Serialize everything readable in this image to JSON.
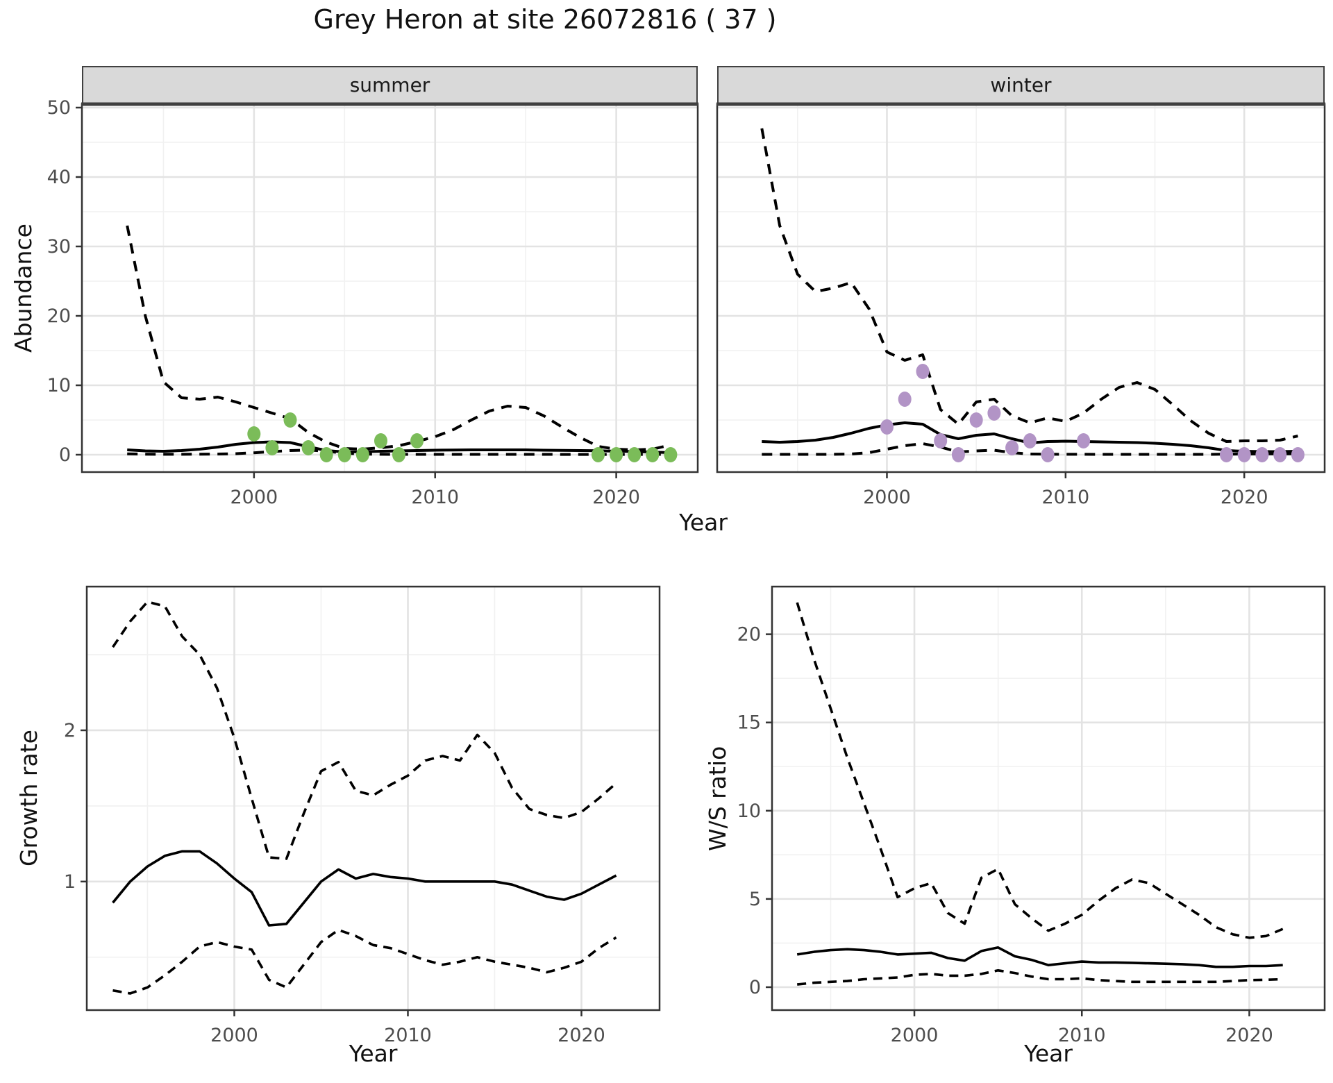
{
  "title": "Grey Heron at site 26072816 ( 37 )",
  "facets": {
    "summer": "summer",
    "winter": "winter"
  },
  "axis_titles": {
    "abundance": "Abundance",
    "year_top": "Year",
    "growth": "Growth rate",
    "ws": "W/S ratio",
    "year_growth": "Year",
    "year_ws": "Year"
  },
  "colors": {
    "summer_points": "#7BBC59",
    "winter_points": "#B294C6",
    "line": "#000000",
    "grid_major": "#E3E3E3",
    "grid_minor": "#F1F1F1",
    "strip_background": "#D9D9D9",
    "panel_border": "#333333",
    "tick_text": "#4D4D4D"
  },
  "chart_data": [
    {
      "id": "abundance-summer",
      "type": "line",
      "facet_label": "summer",
      "x_label": "Year",
      "y_label": "Abundance",
      "xlim": [
        1990.5,
        2024.5
      ],
      "ylim": [
        -2.5,
        50.5
      ],
      "x_ticks": [
        2000,
        2010,
        2020
      ],
      "x_minor_ticks": [
        1995,
        2005,
        2015
      ],
      "y_ticks": [
        0,
        10,
        20,
        30,
        40,
        50
      ],
      "y_minor_ticks": [
        5,
        15,
        25,
        35,
        45
      ],
      "line_years": [
        1993,
        1994,
        1995,
        1996,
        1997,
        1998,
        1999,
        2000,
        2001,
        2002,
        2003,
        2004,
        2005,
        2006,
        2007,
        2008,
        2009,
        2010,
        2011,
        2012,
        2013,
        2014,
        2015,
        2016,
        2017,
        2018,
        2019,
        2020,
        2021,
        2022,
        2023
      ],
      "series": [
        {
          "name": "upper-ci",
          "style": "dashed",
          "values": [
            33,
            20,
            10.5,
            8.2,
            8.0,
            8.3,
            7.6,
            6.8,
            6.0,
            5.2,
            3.2,
            1.8,
            0.9,
            0.8,
            1.0,
            1.3,
            1.9,
            2.6,
            3.6,
            5.0,
            6.3,
            7.0,
            6.8,
            5.6,
            4.0,
            2.5,
            1.2,
            0.8,
            0.7,
            0.8,
            1.4
          ]
        },
        {
          "name": "fitted",
          "style": "solid",
          "values": [
            0.7,
            0.55,
            0.5,
            0.6,
            0.8,
            1.1,
            1.5,
            1.75,
            1.85,
            1.75,
            1.15,
            0.6,
            0.4,
            0.42,
            0.5,
            0.55,
            0.6,
            0.65,
            0.68,
            0.7,
            0.7,
            0.7,
            0.7,
            0.65,
            0.62,
            0.6,
            0.58,
            0.5,
            0.45,
            0.38,
            0.3
          ]
        },
        {
          "name": "lower-ci",
          "style": "dashed",
          "values": [
            0.12,
            0.08,
            0.06,
            0.06,
            0.08,
            0.1,
            0.15,
            0.28,
            0.45,
            0.6,
            0.68,
            0.5,
            0.22,
            0.1,
            0.06,
            0.05,
            0.05,
            0.05,
            0.05,
            0.05,
            0.05,
            0.05,
            0.05,
            0.05,
            0.04,
            0.04,
            0.04,
            0.04,
            0.04,
            0.04,
            0.05
          ]
        }
      ],
      "observations": {
        "color": "summer_points",
        "years": [
          2000,
          2001,
          2002,
          2003,
          2004,
          2005,
          2006,
          2007,
          2008,
          2009,
          2019,
          2020,
          2021,
          2022,
          2023
        ],
        "values": [
          3,
          1,
          5,
          1,
          0,
          0,
          0,
          2,
          0,
          2,
          0,
          0,
          0,
          0,
          0
        ]
      }
    },
    {
      "id": "abundance-winter",
      "type": "line",
      "facet_label": "winter",
      "x_label": "Year",
      "y_label": "Abundance",
      "xlim": [
        1990.5,
        2024.5
      ],
      "ylim": [
        -2.5,
        50.5
      ],
      "x_ticks": [
        2000,
        2010,
        2020
      ],
      "x_minor_ticks": [
        1995,
        2005,
        2015
      ],
      "y_ticks": [
        0,
        10,
        20,
        30,
        40,
        50
      ],
      "y_minor_ticks": [
        5,
        15,
        25,
        35,
        45
      ],
      "line_years": [
        1993,
        1994,
        1995,
        1996,
        1997,
        1998,
        1999,
        2000,
        2001,
        2002,
        2003,
        2004,
        2005,
        2006,
        2007,
        2008,
        2009,
        2010,
        2011,
        2012,
        2013,
        2014,
        2015,
        2016,
        2017,
        2018,
        2019,
        2020,
        2021,
        2022,
        2023
      ],
      "series": [
        {
          "name": "upper-ci",
          "style": "dashed",
          "values": [
            47,
            33,
            26,
            23.5,
            24,
            24.8,
            21,
            14.8,
            13.6,
            14.4,
            6.5,
            4.4,
            7.6,
            8.0,
            5.6,
            4.6,
            5.3,
            4.8,
            6.0,
            8.0,
            9.7,
            10.4,
            9.4,
            7.2,
            4.9,
            3.1,
            1.9,
            2.0,
            2.0,
            2.1,
            2.7
          ]
        },
        {
          "name": "fitted",
          "style": "solid",
          "values": [
            1.9,
            1.8,
            1.9,
            2.1,
            2.5,
            3.1,
            3.8,
            4.3,
            4.6,
            4.4,
            2.9,
            2.3,
            2.8,
            3.0,
            2.3,
            1.7,
            1.9,
            1.95,
            1.9,
            1.85,
            1.8,
            1.75,
            1.65,
            1.5,
            1.3,
            1.0,
            0.6,
            0.5,
            0.45,
            0.45,
            0.5
          ]
        },
        {
          "name": "lower-ci",
          "style": "dashed",
          "values": [
            0.05,
            0.05,
            0.05,
            0.05,
            0.06,
            0.1,
            0.3,
            0.8,
            1.3,
            1.6,
            1.1,
            0.4,
            0.55,
            0.65,
            0.3,
            0.1,
            0.07,
            0.06,
            0.06,
            0.05,
            0.05,
            0.05,
            0.05,
            0.05,
            0.05,
            0.05,
            0.08,
            0.1,
            0.12,
            0.12,
            0.15
          ]
        }
      ],
      "observations": {
        "color": "winter_points",
        "years": [
          2000,
          2001,
          2002,
          2003,
          2004,
          2005,
          2006,
          2007,
          2008,
          2009,
          2011,
          2019,
          2020,
          2021,
          2022,
          2023
        ],
        "values": [
          4,
          8,
          12,
          2,
          0,
          5,
          6,
          1,
          2,
          0,
          2,
          0,
          0,
          0,
          0,
          0
        ]
      }
    },
    {
      "id": "growth-rate",
      "type": "line",
      "x_label": "Year",
      "y_label": "Growth rate",
      "xlim": [
        1991.5,
        2024.5
      ],
      "ylim": [
        0.15,
        2.95
      ],
      "x_ticks": [
        2000,
        2010,
        2020
      ],
      "x_minor_ticks": [
        1995,
        2005,
        2015
      ],
      "y_ticks": [
        1,
        2
      ],
      "y_minor_ticks": [
        0.5,
        1.5,
        2.5
      ],
      "line_years": [
        1993,
        1994,
        1995,
        1996,
        1997,
        1998,
        1999,
        2000,
        2001,
        2002,
        2003,
        2004,
        2005,
        2006,
        2007,
        2008,
        2009,
        2010,
        2011,
        2012,
        2013,
        2014,
        2015,
        2016,
        2017,
        2018,
        2019,
        2020,
        2021,
        2022
      ],
      "series": [
        {
          "name": "upper-ci",
          "style": "dashed",
          "values": [
            2.55,
            2.72,
            2.85,
            2.82,
            2.62,
            2.5,
            2.28,
            1.95,
            1.55,
            1.16,
            1.15,
            1.45,
            1.73,
            1.79,
            1.6,
            1.57,
            1.64,
            1.7,
            1.8,
            1.83,
            1.8,
            1.97,
            1.85,
            1.62,
            1.48,
            1.44,
            1.42,
            1.46,
            1.55,
            1.65
          ]
        },
        {
          "name": "fitted",
          "style": "solid",
          "values": [
            0.86,
            1.0,
            1.1,
            1.17,
            1.2,
            1.2,
            1.12,
            1.02,
            0.93,
            0.71,
            0.72,
            0.86,
            1.0,
            1.08,
            1.02,
            1.05,
            1.03,
            1.02,
            1.0,
            1.0,
            1.0,
            1.0,
            1.0,
            0.98,
            0.94,
            0.9,
            0.88,
            0.92,
            0.98,
            1.04
          ]
        },
        {
          "name": "lower-ci",
          "style": "dashed",
          "values": [
            0.28,
            0.26,
            0.3,
            0.38,
            0.47,
            0.57,
            0.6,
            0.57,
            0.55,
            0.35,
            0.3,
            0.45,
            0.6,
            0.68,
            0.64,
            0.58,
            0.56,
            0.52,
            0.48,
            0.45,
            0.47,
            0.5,
            0.47,
            0.45,
            0.43,
            0.4,
            0.43,
            0.47,
            0.56,
            0.63
          ]
        }
      ]
    },
    {
      "id": "ws-ratio",
      "type": "line",
      "x_label": "Year",
      "y_label": "W/S ratio",
      "xlim": [
        1991.5,
        2024.5
      ],
      "ylim": [
        -1.3,
        22.7
      ],
      "x_ticks": [
        2000,
        2010,
        2020
      ],
      "x_minor_ticks": [
        1995,
        2005,
        2015
      ],
      "y_ticks": [
        0,
        5,
        10,
        15,
        20
      ],
      "y_minor_ticks": [
        2.5,
        7.5,
        12.5,
        17.5
      ],
      "line_years": [
        1993,
        1994,
        1995,
        1996,
        1997,
        1998,
        1999,
        2000,
        2001,
        2002,
        2003,
        2004,
        2005,
        2006,
        2007,
        2008,
        2009,
        2010,
        2011,
        2012,
        2013,
        2014,
        2015,
        2016,
        2017,
        2018,
        2019,
        2020,
        2021,
        2022
      ],
      "series": [
        {
          "name": "upper-ci",
          "style": "dashed",
          "values": [
            21.8,
            18.6,
            15.8,
            13.0,
            10.4,
            7.8,
            5.1,
            5.6,
            5.9,
            4.2,
            3.6,
            6.2,
            6.7,
            4.7,
            3.9,
            3.2,
            3.6,
            4.1,
            4.9,
            5.6,
            6.1,
            5.9,
            5.3,
            4.7,
            4.1,
            3.4,
            3.0,
            2.8,
            2.9,
            3.3
          ]
        },
        {
          "name": "fitted",
          "style": "solid",
          "values": [
            1.85,
            2.0,
            2.1,
            2.15,
            2.1,
            2.0,
            1.85,
            1.9,
            1.95,
            1.65,
            1.5,
            2.05,
            2.25,
            1.75,
            1.55,
            1.25,
            1.35,
            1.45,
            1.4,
            1.4,
            1.38,
            1.35,
            1.33,
            1.3,
            1.25,
            1.15,
            1.15,
            1.2,
            1.2,
            1.25
          ]
        },
        {
          "name": "lower-ci",
          "style": "dashed",
          "values": [
            0.15,
            0.25,
            0.3,
            0.35,
            0.45,
            0.5,
            0.55,
            0.7,
            0.75,
            0.65,
            0.65,
            0.75,
            0.95,
            0.8,
            0.6,
            0.45,
            0.45,
            0.5,
            0.4,
            0.35,
            0.3,
            0.3,
            0.3,
            0.3,
            0.3,
            0.3,
            0.35,
            0.4,
            0.42,
            0.45
          ]
        }
      ]
    }
  ]
}
